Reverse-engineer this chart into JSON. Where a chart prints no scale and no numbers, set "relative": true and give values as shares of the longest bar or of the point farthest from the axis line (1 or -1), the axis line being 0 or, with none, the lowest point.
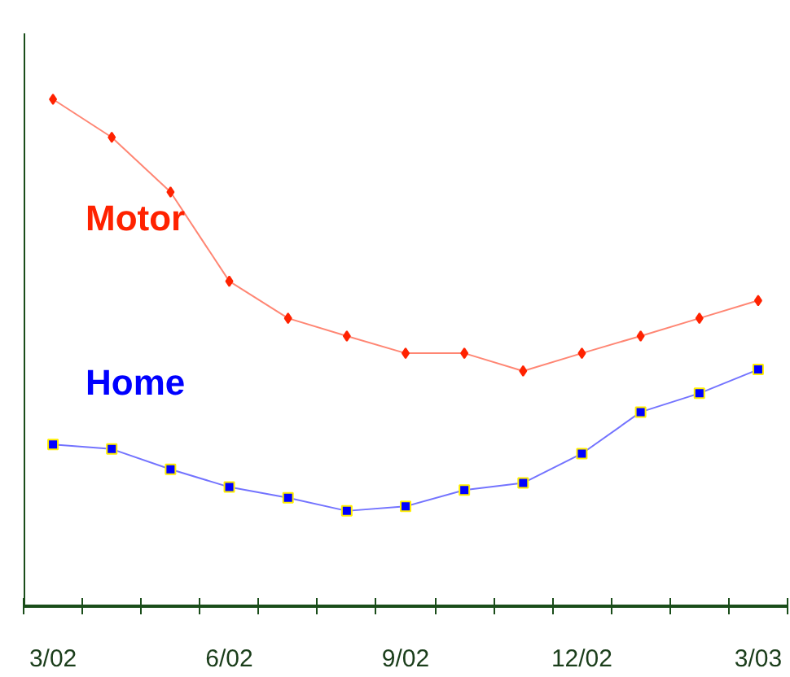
{
  "chart_data": {
    "type": "line",
    "relative": true,
    "categories": [
      "3/02",
      null,
      null,
      "6/02",
      null,
      null,
      "9/02",
      null,
      null,
      "12/02",
      null,
      null,
      "3/03"
    ],
    "series": [
      {
        "name": "Motor",
        "color": "#ff2200",
        "marker": "diamond",
        "values": [
          1,
          0.925,
          0.817,
          0.641,
          0.568,
          0.533,
          0.499,
          0.499,
          0.464,
          0.499,
          0.533,
          0.568,
          0.603
        ]
      },
      {
        "name": "Home",
        "color": "#0000ff",
        "marker": "square",
        "values": [
          0.319,
          0.31,
          0.27,
          0.235,
          0.214,
          0.188,
          0.197,
          0.229,
          0.243,
          0.301,
          0.383,
          0.42,
          0.467
        ]
      }
    ],
    "grid": false,
    "line_style": "solid"
  }
}
